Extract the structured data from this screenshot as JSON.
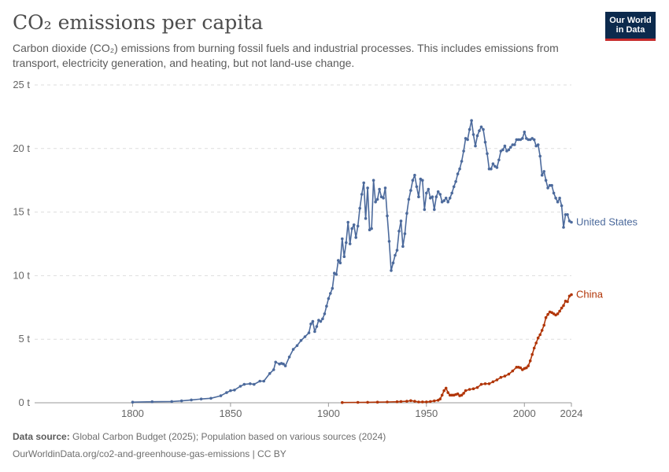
{
  "header": {
    "title": "CO₂ emissions per capita",
    "subtitle": "Carbon dioxide (CO₂) emissions from burning fossil fuels and industrial processes. This includes emissions from transport, electricity generation, and heating, but not land-use change."
  },
  "logo": {
    "line1": "Our World",
    "line2": "in Data"
  },
  "footer": {
    "source_label": "Data source:",
    "source_text": "Global Carbon Budget (2025); Population based on various sources (2024)",
    "url": "OurWorldinData.org/co2-and-greenhouse-gas-emissions | CC BY"
  },
  "colors": {
    "United States": "#4c6a9c",
    "China": "#b13507",
    "grid": "#dddddd",
    "text": "#5b5b5b"
  },
  "chart_data": {
    "type": "line",
    "xlim": [
      1750,
      2024
    ],
    "ylim": [
      0,
      25
    ],
    "x_ticks": [
      1800,
      1850,
      1900,
      1950,
      2000,
      2024
    ],
    "y_ticks": [
      0,
      5,
      10,
      15,
      20,
      25
    ],
    "y_tick_labels": [
      "0 t",
      "5 t",
      "10 t",
      "15 t",
      "20 t",
      "25 t"
    ],
    "grid": true,
    "series": [
      {
        "name": "United States",
        "points": [
          [
            1800,
            0.05
          ],
          [
            1810,
            0.08
          ],
          [
            1820,
            0.1
          ],
          [
            1825,
            0.15
          ],
          [
            1830,
            0.22
          ],
          [
            1835,
            0.3
          ],
          [
            1840,
            0.35
          ],
          [
            1845,
            0.55
          ],
          [
            1848,
            0.8
          ],
          [
            1850,
            0.95
          ],
          [
            1852,
            1.0
          ],
          [
            1855,
            1.3
          ],
          [
            1857,
            1.45
          ],
          [
            1860,
            1.5
          ],
          [
            1862,
            1.45
          ],
          [
            1865,
            1.7
          ],
          [
            1867,
            1.7
          ],
          [
            1870,
            2.3
          ],
          [
            1872,
            2.6
          ],
          [
            1873,
            3.2
          ],
          [
            1875,
            3.05
          ],
          [
            1876,
            3.1
          ],
          [
            1877,
            3.05
          ],
          [
            1878,
            2.9
          ],
          [
            1880,
            3.6
          ],
          [
            1882,
            4.2
          ],
          [
            1884,
            4.5
          ],
          [
            1886,
            4.9
          ],
          [
            1888,
            5.2
          ],
          [
            1890,
            5.5
          ],
          [
            1891,
            6.2
          ],
          [
            1892,
            6.4
          ],
          [
            1893,
            5.6
          ],
          [
            1894,
            6.0
          ],
          [
            1895,
            6.5
          ],
          [
            1896,
            6.4
          ],
          [
            1897,
            6.6
          ],
          [
            1898,
            7.0
          ],
          [
            1899,
            7.6
          ],
          [
            1900,
            8.2
          ],
          [
            1901,
            8.6
          ],
          [
            1902,
            9.0
          ],
          [
            1903,
            10.2
          ],
          [
            1904,
            10.1
          ],
          [
            1905,
            11.2
          ],
          [
            1906,
            11.0
          ],
          [
            1907,
            12.9
          ],
          [
            1908,
            11.5
          ],
          [
            1909,
            12.6
          ],
          [
            1910,
            14.2
          ],
          [
            1911,
            12.5
          ],
          [
            1912,
            13.7
          ],
          [
            1913,
            14.0
          ],
          [
            1914,
            13.0
          ],
          [
            1915,
            13.9
          ],
          [
            1916,
            15.3
          ],
          [
            1917,
            16.4
          ],
          [
            1918,
            17.3
          ],
          [
            1919,
            14.5
          ],
          [
            1920,
            16.9
          ],
          [
            1921,
            13.6
          ],
          [
            1922,
            13.7
          ],
          [
            1923,
            17.5
          ],
          [
            1924,
            15.8
          ],
          [
            1925,
            16.0
          ],
          [
            1926,
            16.8
          ],
          [
            1927,
            16.2
          ],
          [
            1928,
            16.1
          ],
          [
            1929,
            16.9
          ],
          [
            1930,
            14.7
          ],
          [
            1931,
            12.7
          ],
          [
            1932,
            10.4
          ],
          [
            1933,
            11.0
          ],
          [
            1934,
            11.6
          ],
          [
            1935,
            12.0
          ],
          [
            1936,
            13.5
          ],
          [
            1937,
            14.3
          ],
          [
            1938,
            12.3
          ],
          [
            1939,
            13.3
          ],
          [
            1940,
            14.9
          ],
          [
            1941,
            16.0
          ],
          [
            1942,
            16.7
          ],
          [
            1943,
            17.5
          ],
          [
            1944,
            17.9
          ],
          [
            1945,
            17.0
          ],
          [
            1946,
            16.2
          ],
          [
            1947,
            17.6
          ],
          [
            1948,
            17.5
          ],
          [
            1949,
            15.2
          ],
          [
            1950,
            16.5
          ],
          [
            1951,
            16.8
          ],
          [
            1952,
            16.1
          ],
          [
            1953,
            16.2
          ],
          [
            1954,
            15.2
          ],
          [
            1955,
            16.2
          ],
          [
            1956,
            16.6
          ],
          [
            1957,
            16.4
          ],
          [
            1958,
            15.8
          ],
          [
            1959,
            15.9
          ],
          [
            1960,
            16.1
          ],
          [
            1961,
            15.8
          ],
          [
            1962,
            16.1
          ],
          [
            1963,
            16.5
          ],
          [
            1964,
            17.0
          ],
          [
            1965,
            17.4
          ],
          [
            1966,
            18.0
          ],
          [
            1967,
            18.4
          ],
          [
            1968,
            19.0
          ],
          [
            1969,
            19.8
          ],
          [
            1970,
            20.8
          ],
          [
            1971,
            20.7
          ],
          [
            1972,
            21.5
          ],
          [
            1973,
            22.2
          ],
          [
            1974,
            21.1
          ],
          [
            1975,
            20.2
          ],
          [
            1976,
            21.0
          ],
          [
            1977,
            21.4
          ],
          [
            1978,
            21.7
          ],
          [
            1979,
            21.5
          ],
          [
            1980,
            20.5
          ],
          [
            1981,
            19.6
          ],
          [
            1982,
            18.4
          ],
          [
            1983,
            18.4
          ],
          [
            1984,
            18.8
          ],
          [
            1985,
            18.6
          ],
          [
            1986,
            18.5
          ],
          [
            1987,
            19.1
          ],
          [
            1988,
            19.8
          ],
          [
            1989,
            19.9
          ],
          [
            1990,
            20.2
          ],
          [
            1991,
            19.8
          ],
          [
            1992,
            19.9
          ],
          [
            1993,
            20.1
          ],
          [
            1994,
            20.3
          ],
          [
            1995,
            20.3
          ],
          [
            1996,
            20.7
          ],
          [
            1997,
            20.7
          ],
          [
            1998,
            20.7
          ],
          [
            1999,
            20.8
          ],
          [
            2000,
            21.3
          ],
          [
            2001,
            20.8
          ],
          [
            2002,
            20.7
          ],
          [
            2003,
            20.7
          ],
          [
            2004,
            20.8
          ],
          [
            2005,
            20.7
          ],
          [
            2006,
            20.2
          ],
          [
            2007,
            20.3
          ],
          [
            2008,
            19.4
          ],
          [
            2009,
            17.9
          ],
          [
            2010,
            18.2
          ],
          [
            2011,
            17.5
          ],
          [
            2012,
            16.9
          ],
          [
            2013,
            17.1
          ],
          [
            2014,
            17.1
          ],
          [
            2015,
            16.5
          ],
          [
            2016,
            16.1
          ],
          [
            2017,
            15.8
          ],
          [
            2018,
            16.1
          ],
          [
            2019,
            15.5
          ],
          [
            2020,
            13.8
          ],
          [
            2021,
            14.8
          ],
          [
            2022,
            14.8
          ],
          [
            2023,
            14.3
          ],
          [
            2024,
            14.2
          ]
        ]
      },
      {
        "name": "China",
        "points": [
          [
            1907,
            0.02
          ],
          [
            1915,
            0.03
          ],
          [
            1920,
            0.04
          ],
          [
            1925,
            0.05
          ],
          [
            1930,
            0.06
          ],
          [
            1935,
            0.08
          ],
          [
            1937,
            0.1
          ],
          [
            1940,
            0.12
          ],
          [
            1942,
            0.17
          ],
          [
            1944,
            0.12
          ],
          [
            1946,
            0.06
          ],
          [
            1948,
            0.07
          ],
          [
            1950,
            0.07
          ],
          [
            1952,
            0.1
          ],
          [
            1954,
            0.15
          ],
          [
            1956,
            0.2
          ],
          [
            1957,
            0.3
          ],
          [
            1958,
            0.6
          ],
          [
            1959,
            0.95
          ],
          [
            1960,
            1.15
          ],
          [
            1961,
            0.8
          ],
          [
            1962,
            0.6
          ],
          [
            1963,
            0.6
          ],
          [
            1964,
            0.6
          ],
          [
            1965,
            0.65
          ],
          [
            1966,
            0.7
          ],
          [
            1967,
            0.55
          ],
          [
            1968,
            0.6
          ],
          [
            1969,
            0.75
          ],
          [
            1970,
            0.95
          ],
          [
            1972,
            1.05
          ],
          [
            1974,
            1.1
          ],
          [
            1976,
            1.2
          ],
          [
            1978,
            1.45
          ],
          [
            1980,
            1.5
          ],
          [
            1982,
            1.5
          ],
          [
            1984,
            1.65
          ],
          [
            1986,
            1.8
          ],
          [
            1988,
            2.0
          ],
          [
            1990,
            2.1
          ],
          [
            1992,
            2.25
          ],
          [
            1994,
            2.5
          ],
          [
            1996,
            2.8
          ],
          [
            1997,
            2.8
          ],
          [
            1998,
            2.75
          ],
          [
            1999,
            2.6
          ],
          [
            2000,
            2.7
          ],
          [
            2001,
            2.75
          ],
          [
            2002,
            2.9
          ],
          [
            2003,
            3.3
          ],
          [
            2004,
            3.8
          ],
          [
            2005,
            4.3
          ],
          [
            2006,
            4.7
          ],
          [
            2007,
            5.1
          ],
          [
            2008,
            5.35
          ],
          [
            2009,
            5.7
          ],
          [
            2010,
            6.1
          ],
          [
            2011,
            6.7
          ],
          [
            2012,
            6.95
          ],
          [
            2013,
            7.15
          ],
          [
            2014,
            7.1
          ],
          [
            2015,
            7.0
          ],
          [
            2016,
            6.9
          ],
          [
            2017,
            7.0
          ],
          [
            2018,
            7.2
          ],
          [
            2019,
            7.45
          ],
          [
            2020,
            7.65
          ],
          [
            2021,
            8.0
          ],
          [
            2022,
            7.95
          ],
          [
            2023,
            8.4
          ],
          [
            2024,
            8.5
          ]
        ]
      }
    ]
  }
}
